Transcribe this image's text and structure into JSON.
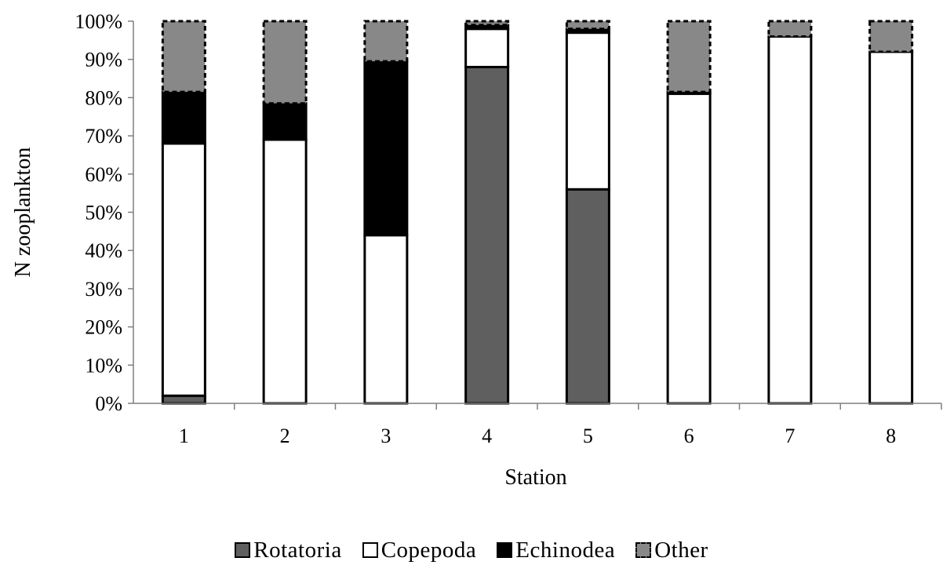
{
  "chart_data": {
    "type": "bar",
    "stacked": true,
    "percent_stacked": true,
    "categories": [
      "1",
      "2",
      "3",
      "4",
      "5",
      "6",
      "7",
      "8"
    ],
    "xlabel": "Station",
    "ylabel": "N zooplankton",
    "ylim": [
      0,
      100
    ],
    "yticks": [
      "0%",
      "10%",
      "20%",
      "30%",
      "40%",
      "50%",
      "60%",
      "70%",
      "80%",
      "90%",
      "100%"
    ],
    "grid": false,
    "legend_position": "bottom",
    "series": [
      {
        "name": "Rotatoria",
        "color": "#5f5f5f",
        "dashed": false,
        "values": [
          2,
          0,
          0,
          88,
          56,
          0,
          0,
          0
        ]
      },
      {
        "name": "Copepoda",
        "color": "#ffffff",
        "dashed": false,
        "values": [
          66,
          69,
          44,
          10,
          41,
          81,
          96,
          92
        ]
      },
      {
        "name": "Echinodea",
        "color": "#000000",
        "dashed": false,
        "values": [
          13.5,
          9.5,
          45.5,
          1,
          1,
          0.5,
          0,
          0
        ]
      },
      {
        "name": "Other",
        "color": "#888888",
        "dashed": true,
        "values": [
          18.5,
          21.5,
          10.5,
          1,
          2,
          18.5,
          4,
          8
        ]
      }
    ]
  }
}
